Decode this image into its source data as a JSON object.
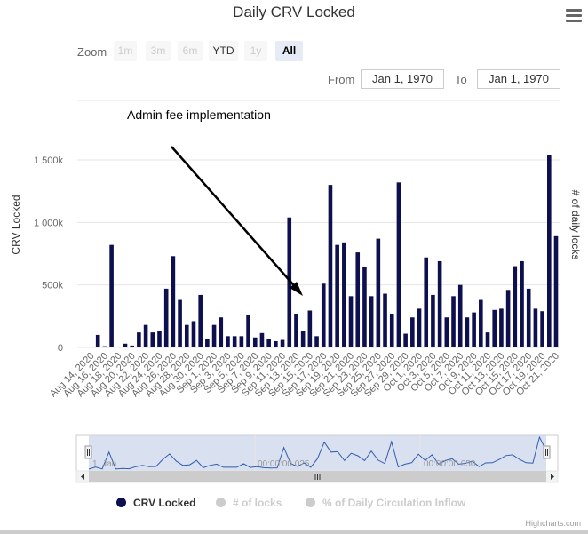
{
  "menu": {
    "icon": "hamburger-menu-icon"
  },
  "zoom": {
    "label": "Zoom",
    "buttons": [
      {
        "label": "1m",
        "state": "disabled"
      },
      {
        "label": "3m",
        "state": "disabled"
      },
      {
        "label": "6m",
        "state": "disabled"
      },
      {
        "label": "YTD",
        "state": "enabled"
      },
      {
        "label": "1y",
        "state": "disabled"
      },
      {
        "label": "All",
        "state": "active"
      }
    ]
  },
  "range": {
    "from_label": "From",
    "from_value": "Jan 1, 1970",
    "to_label": "To",
    "to_value": "Jan 1, 1970"
  },
  "navigator": {
    "labels": [
      "1. Jan",
      "00:00:00.025",
      "00:00:00.050"
    ]
  },
  "legend": [
    {
      "label": "CRV Locked",
      "color": "#0d0f4f",
      "active": true
    },
    {
      "label": "# of locks",
      "color": "#cccccc",
      "active": false
    },
    {
      "label": "% of Daily Circulation Inflow",
      "color": "#cccccc",
      "active": false
    }
  ],
  "credits": "Highcharts.com",
  "chart_data": {
    "type": "bar",
    "title": "Daily CRV Locked",
    "ylabel": "CRV Locked",
    "y2label": "# of daily locks",
    "yticks": [
      0,
      500000,
      1000000,
      1500000
    ],
    "ytick_labels": [
      "0",
      "500k",
      "1 000k",
      "1 500k"
    ],
    "ylim": [
      0,
      1800000
    ],
    "grid": true,
    "annotation": "Admin fee implementation",
    "bar_color": "#0d0f4f",
    "xtick_labels": [
      "Aug 14, 2020",
      "Aug 16, 2020",
      "Aug 18, 2020",
      "Aug 20, 2020",
      "Aug 22, 2020",
      "Aug 24, 2020",
      "Aug 26, 2020",
      "Aug 28, 2020",
      "Aug 30, 2020",
      "Sep 1, 2020",
      "Sep 3, 2020",
      "Sep 5, 2020",
      "Sep 7, 2020",
      "Sep 9, 2020",
      "Sep 11, 2020",
      "Sep 13, 2020",
      "Sep 15, 2020",
      "Sep 17, 2020",
      "Sep 19, 2020",
      "Sep 21, 2020",
      "Sep 23, 2020",
      "Sep 25, 2020",
      "Sep 27, 2020",
      "Sep 29, 2020",
      "Oct 1, 2020",
      "Oct 3, 2020",
      "Oct 5, 2020",
      "Oct 7, 2020",
      "Oct 9, 2020",
      "Oct 11, 2020",
      "Oct 13, 2020",
      "Oct 15, 2020",
      "Oct 17, 2020",
      "Oct 19, 2020",
      "Oct 21, 2020"
    ],
    "values": [
      0,
      100000,
      10000,
      820000,
      5000,
      30000,
      15000,
      120000,
      180000,
      120000,
      130000,
      470000,
      730000,
      380000,
      180000,
      210000,
      420000,
      70000,
      180000,
      240000,
      90000,
      90000,
      90000,
      260000,
      80000,
      115000,
      70000,
      50000,
      60000,
      1040000,
      270000,
      130000,
      295000,
      90000,
      510000,
      1300000,
      820000,
      840000,
      410000,
      760000,
      640000,
      410000,
      870000,
      430000,
      270000,
      1320000,
      110000,
      240000,
      310000,
      720000,
      420000,
      690000,
      240000,
      410000,
      500000,
      240000,
      280000,
      380000,
      120000,
      300000,
      310000,
      460000,
      650000,
      690000,
      470000,
      310000,
      290000,
      1540000,
      890000
    ]
  }
}
